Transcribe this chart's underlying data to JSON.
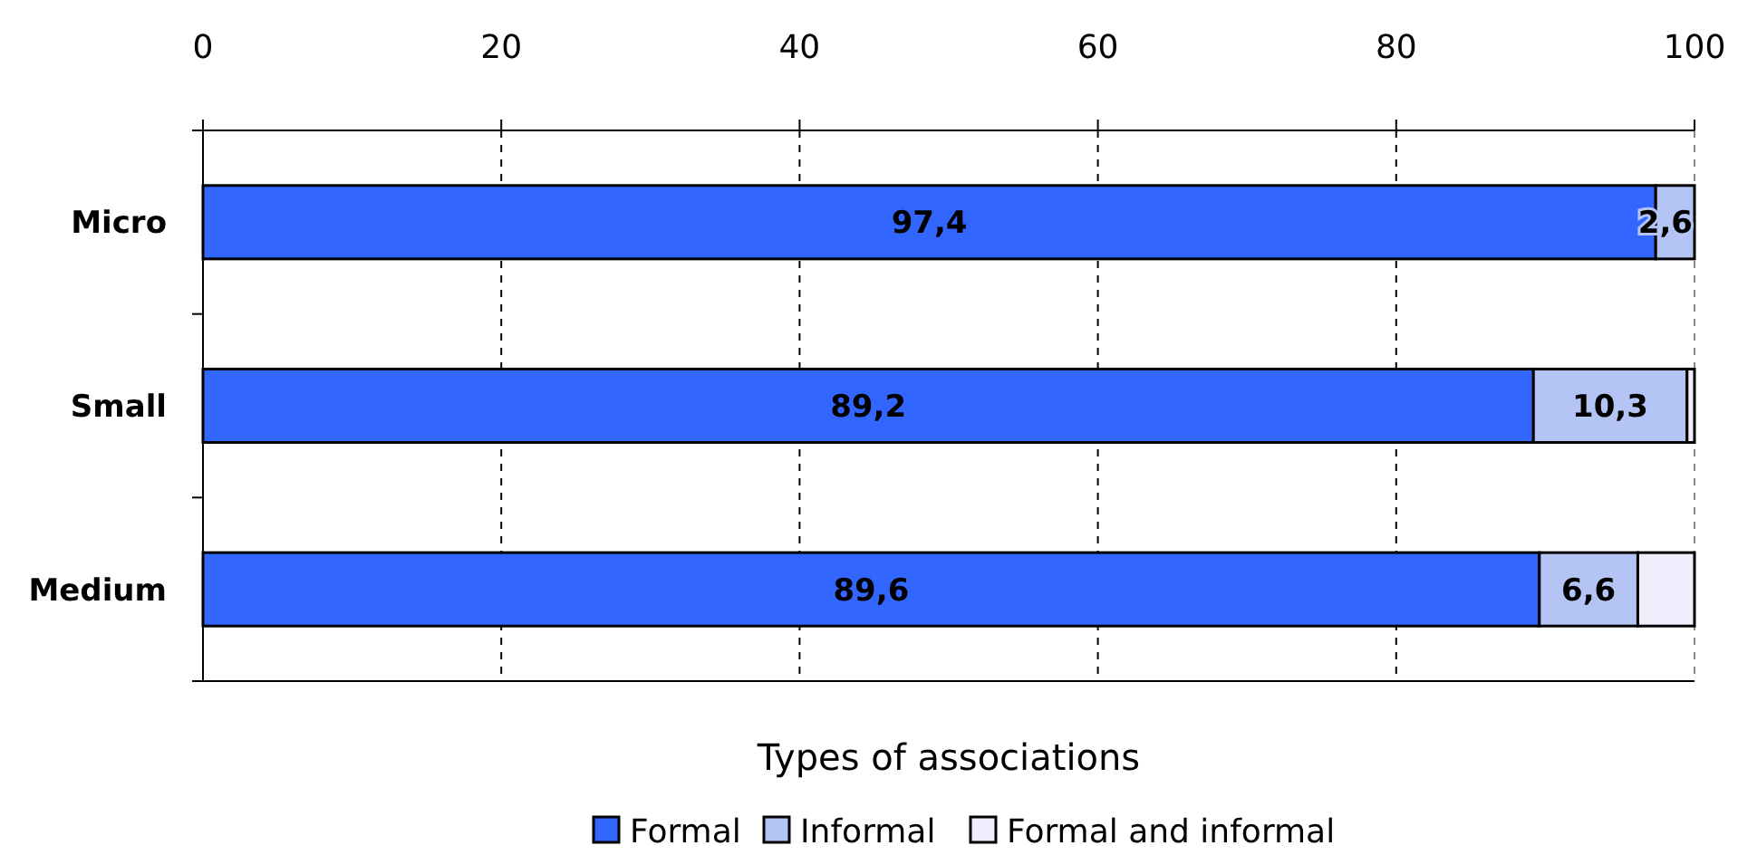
{
  "chart_data": {
    "type": "bar",
    "orientation": "horizontal",
    "stacked": true,
    "categories": [
      "Micro",
      "Small",
      "Medium"
    ],
    "series": [
      {
        "name": "Formal",
        "color": "#3366ff",
        "values": [
          97.4,
          89.2,
          89.6
        ],
        "value_labels": [
          "97,4",
          "89,2",
          "89,6"
        ]
      },
      {
        "name": "Informal",
        "color": "#b4c4f4",
        "values": [
          2.6,
          10.3,
          6.6
        ],
        "value_labels": [
          "2,6",
          "10,3",
          "6,6"
        ]
      },
      {
        "name": "Formal and informal",
        "color": "#eeeefc",
        "values": [
          0,
          0.5,
          3.8
        ]
      }
    ],
    "xlim": [
      0,
      100
    ],
    "xticks": [
      0,
      20,
      40,
      60,
      80,
      100
    ],
    "grid": "x",
    "legend": "bottom",
    "legend_title": "Types of associations"
  }
}
